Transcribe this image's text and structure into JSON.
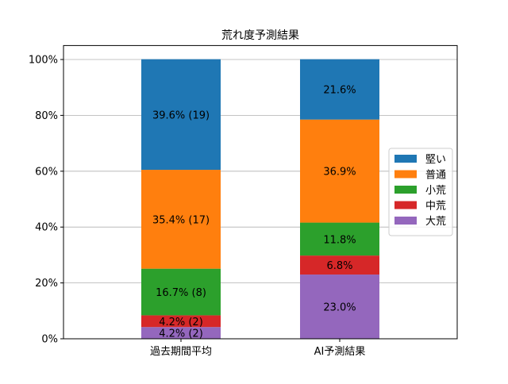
{
  "chart_data": {
    "type": "bar",
    "stacked": true,
    "normalized": true,
    "title": "荒れ度予測結果",
    "xlabel": "",
    "ylabel": "",
    "categories": [
      "過去期間平均",
      "AI予測結果"
    ],
    "ylim": [
      0,
      105
    ],
    "yticks": [
      0,
      20,
      40,
      60,
      80,
      100
    ],
    "ytick_labels": [
      "0%",
      "20%",
      "40%",
      "60%",
      "80%",
      "100%"
    ],
    "grid": "horizontal",
    "legend_placement": "center-right",
    "series": [
      {
        "name": "大荒",
        "color": "#9467bd",
        "values": [
          4.2,
          23.0
        ],
        "labels": [
          "4.2% (2)",
          "23.0%"
        ]
      },
      {
        "name": "中荒",
        "color": "#d62728",
        "values": [
          4.2,
          6.8
        ],
        "labels": [
          "4.2% (2)",
          "6.8%"
        ]
      },
      {
        "name": "小荒",
        "color": "#2ca02c",
        "values": [
          16.7,
          11.8
        ],
        "labels": [
          "16.7% (8)",
          "11.8%"
        ]
      },
      {
        "name": "普通",
        "color": "#ff7f0e",
        "values": [
          35.4,
          36.9
        ],
        "labels": [
          "35.4% (17)",
          "36.9%"
        ]
      },
      {
        "name": "堅い",
        "color": "#1f77b4",
        "values": [
          39.6,
          21.6
        ],
        "labels": [
          "39.6% (19)",
          "21.6%"
        ]
      }
    ],
    "legend_order": [
      "堅い",
      "普通",
      "小荒",
      "中荒",
      "大荒"
    ]
  }
}
